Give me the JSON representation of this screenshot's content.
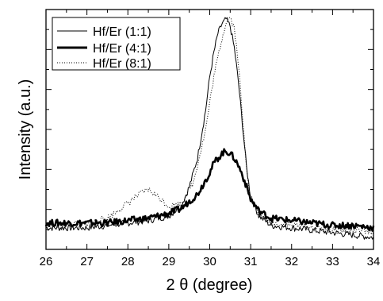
{
  "chart_data": {
    "type": "line",
    "xlabel": "2 θ (degree)",
    "ylabel": "Intensity (a.u.)",
    "xlim": [
      26,
      34
    ],
    "ylim": [
      0,
      1
    ],
    "x_ticks": [
      "26",
      "27",
      "28",
      "29",
      "30",
      "31",
      "32",
      "33",
      "34"
    ],
    "y_tick_labels": "none",
    "grid": false,
    "legend_position": "top-left",
    "series": [
      {
        "name": "Hf/Er (1:1)",
        "style": "thin-solid",
        "x": [
          26.0,
          26.5,
          27.0,
          27.5,
          28.0,
          28.5,
          29.0,
          29.3,
          29.5,
          29.7,
          29.9,
          30.0,
          30.1,
          30.2,
          30.3,
          30.4,
          30.5,
          30.6,
          30.7,
          30.8,
          30.9,
          31.0,
          31.2,
          31.5,
          32.0,
          32.5,
          33.0,
          33.5,
          34.0
        ],
        "y": [
          0.09,
          0.09,
          0.09,
          0.1,
          0.11,
          0.12,
          0.14,
          0.18,
          0.26,
          0.38,
          0.58,
          0.72,
          0.82,
          0.9,
          0.94,
          0.96,
          0.93,
          0.84,
          0.7,
          0.52,
          0.34,
          0.22,
          0.14,
          0.1,
          0.09,
          0.08,
          0.07,
          0.06,
          0.05
        ]
      },
      {
        "name": "Hf/Er (4:1)",
        "style": "thick-solid",
        "x": [
          26.0,
          26.5,
          27.0,
          27.5,
          28.0,
          28.5,
          29.0,
          29.3,
          29.5,
          29.7,
          29.9,
          30.0,
          30.1,
          30.2,
          30.3,
          30.4,
          30.5,
          30.6,
          30.7,
          30.8,
          30.9,
          31.0,
          31.2,
          31.5,
          32.0,
          32.5,
          33.0,
          33.5,
          34.0
        ],
        "y": [
          0.11,
          0.11,
          0.11,
          0.11,
          0.12,
          0.13,
          0.15,
          0.17,
          0.2,
          0.23,
          0.29,
          0.32,
          0.36,
          0.38,
          0.4,
          0.41,
          0.4,
          0.38,
          0.35,
          0.31,
          0.26,
          0.21,
          0.16,
          0.13,
          0.12,
          0.11,
          0.1,
          0.1,
          0.09
        ]
      },
      {
        "name": "Hf/Er (8:1)",
        "style": "dotted",
        "x": [
          26.0,
          26.5,
          27.0,
          27.5,
          27.9,
          28.2,
          28.5,
          28.8,
          29.0,
          29.3,
          29.6,
          29.9,
          30.1,
          30.2,
          30.3,
          30.4,
          30.5,
          30.6,
          30.7,
          30.8,
          30.9,
          31.0,
          31.2,
          31.5,
          32.0,
          32.5,
          33.0,
          33.5,
          34.0
        ],
        "y": [
          0.1,
          0.1,
          0.11,
          0.13,
          0.18,
          0.22,
          0.25,
          0.21,
          0.18,
          0.19,
          0.28,
          0.5,
          0.72,
          0.8,
          0.88,
          0.95,
          0.97,
          0.92,
          0.78,
          0.55,
          0.34,
          0.22,
          0.15,
          0.11,
          0.1,
          0.09,
          0.08,
          0.08,
          0.07
        ]
      }
    ]
  }
}
